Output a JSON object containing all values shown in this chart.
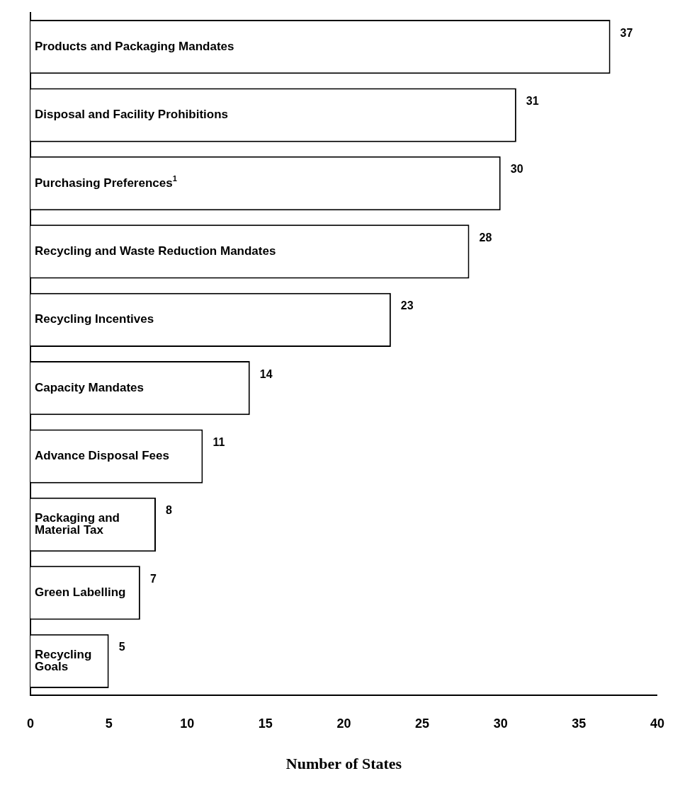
{
  "chart_data": {
    "type": "bar",
    "orientation": "horizontal",
    "xlabel": "Number of States",
    "categories": [
      "Products and Packaging Mandates",
      "Disposal and Facility Prohibitions",
      "Purchasing Preferences$^{1}$",
      "Recycling and Waste Reduction Mandates",
      "Recycling Incentives",
      "Capacity Mandates",
      "Advance Disposal Fees",
      "Packaging and Material Tax",
      "Green Labelling",
      "Recycling Goals"
    ],
    "values": [
      37,
      31,
      30,
      28,
      23,
      14,
      11,
      8,
      7,
      5
    ],
    "color": "#ffffff",
    "xlim": [
      0,
      40
    ],
    "xticks": [
      0,
      5,
      10,
      15,
      20,
      25,
      30,
      35,
      40
    ],
    "data_labels": true,
    "grid": false,
    "legend": false
  }
}
